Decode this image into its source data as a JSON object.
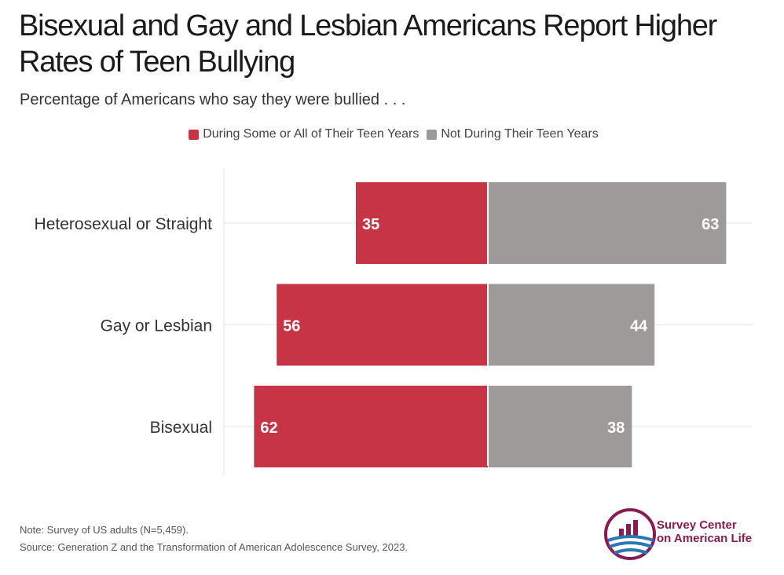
{
  "title": "Bisexual and Gay and Lesbian Americans Report Higher Rates of Teen Bullying",
  "subtitle": "Percentage of Americans who say they were bullied . . .",
  "legend": [
    {
      "label": "During Some or All of Their Teen Years",
      "color": "#c73446"
    },
    {
      "label": "Not During Their Teen Years",
      "color": "#9f9a9a"
    }
  ],
  "chart_data": {
    "type": "bar",
    "orientation": "horizontal",
    "stacked": "diverging",
    "categories": [
      "Heterosexual or Straight",
      "Gay or Lesbian",
      "Bisexual"
    ],
    "series": [
      {
        "name": "During Some or All of Their Teen Years",
        "values": [
          35,
          56,
          62
        ],
        "color": "#c73446"
      },
      {
        "name": "Not During Their Teen Years",
        "values": [
          63,
          44,
          38
        ],
        "color": "#9f9a9a"
      }
    ],
    "grid": true,
    "legend_position": "top"
  },
  "note": "Note: Survey of US adults (N=5,459).",
  "source": "Source: Generation Z and the Transformation of American Adolescence Survey, 2023.",
  "logo": {
    "line1": "Survey Center",
    "line2": "on American Life"
  }
}
